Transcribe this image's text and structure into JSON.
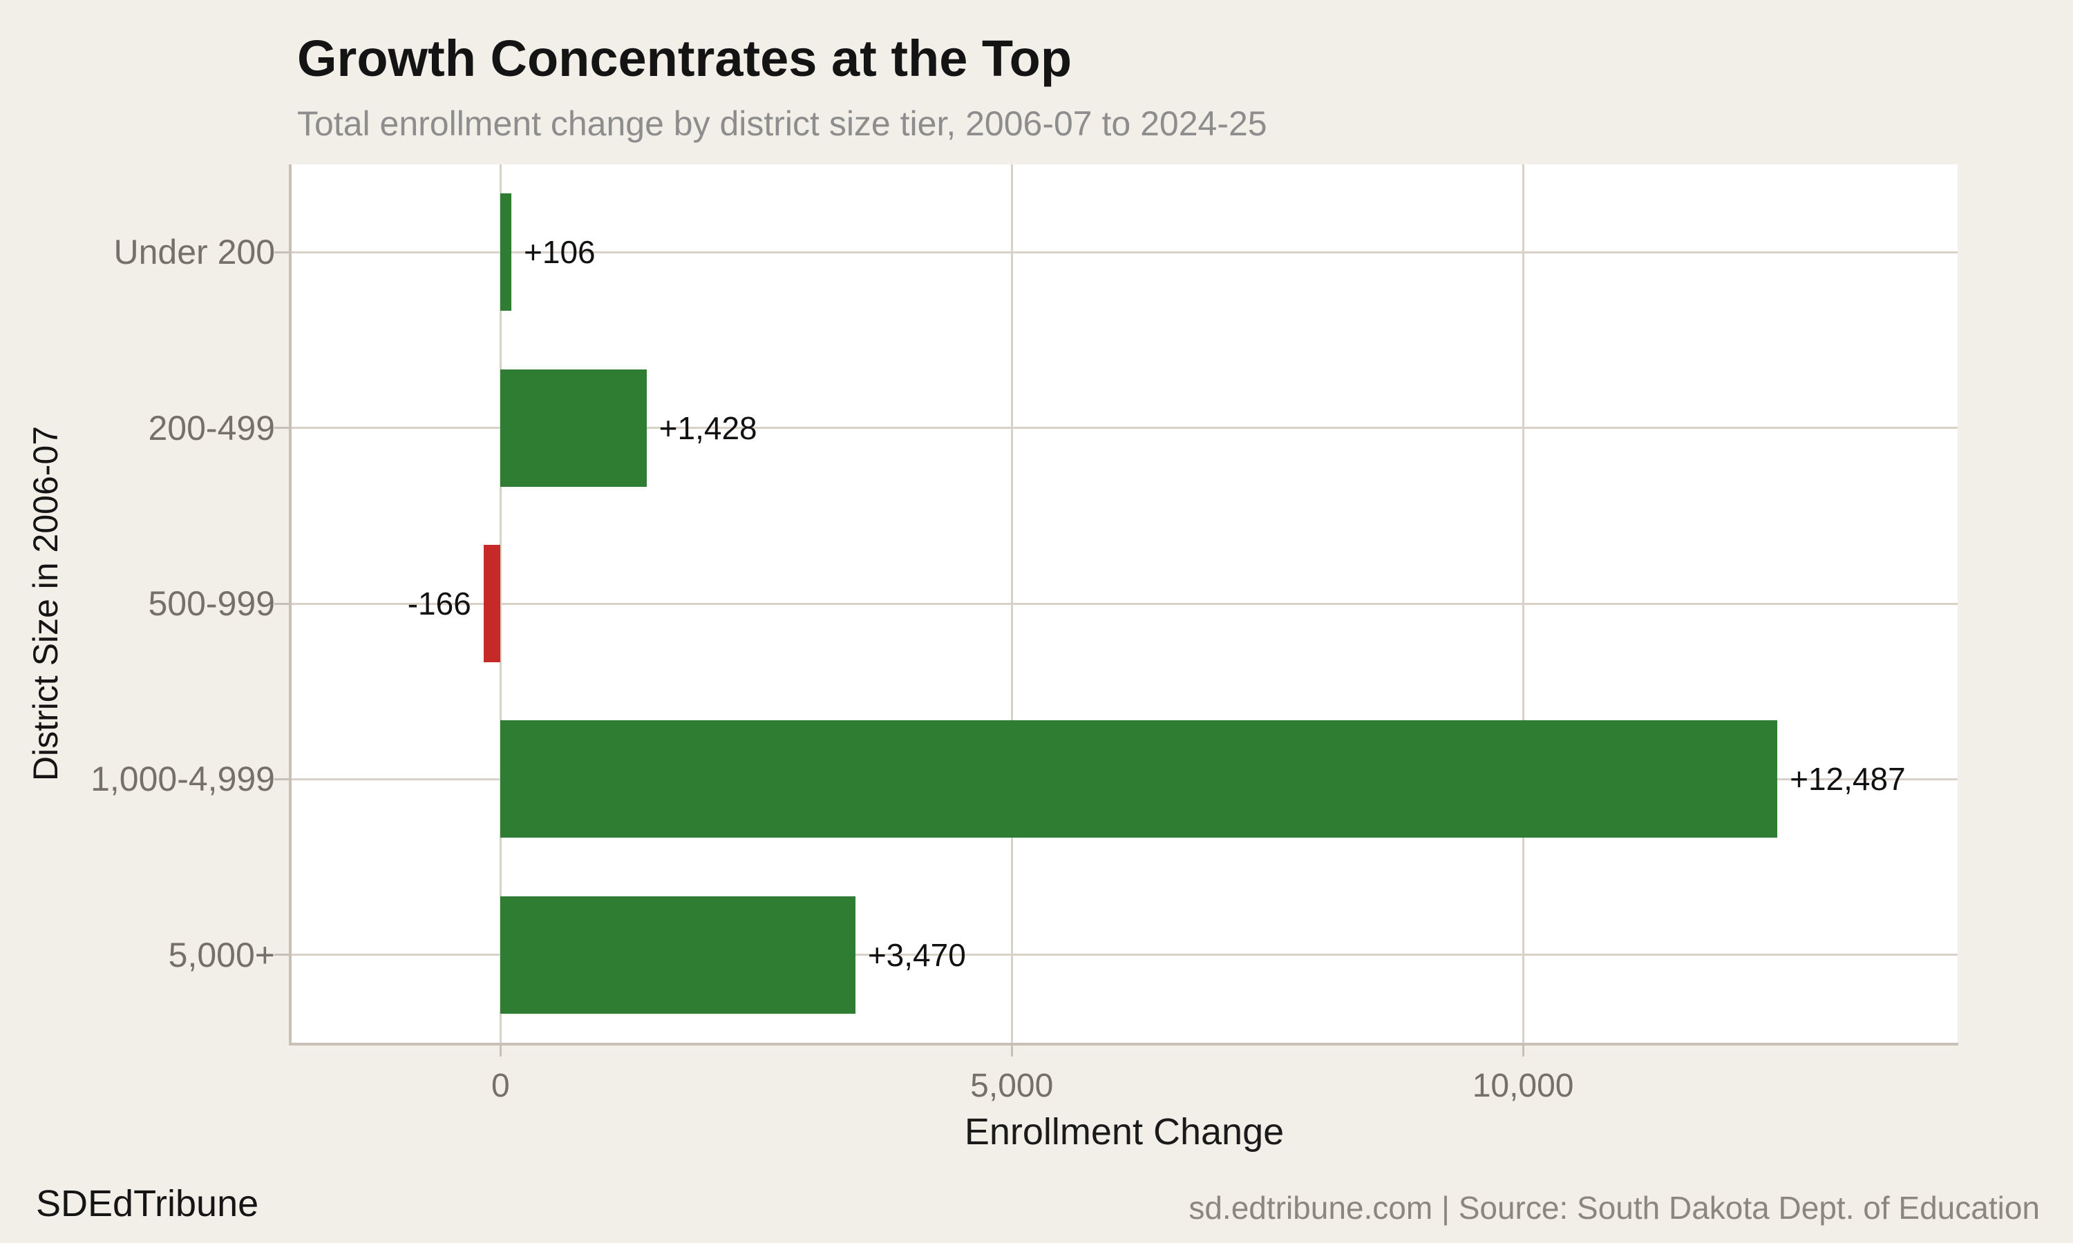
{
  "colors": {
    "background": "#f2efe9",
    "plot_background": "#ffffff",
    "grid": "#d7d1c8",
    "axis": "#c7c0b6",
    "positive_bar": "#2e7d32",
    "negative_bar": "#c52a28",
    "title_text": "#141414",
    "subtitle_text": "#8d8d8d",
    "tick_text": "#757069",
    "value_text": "#111111"
  },
  "footer": {
    "brand": "SDEdTribune",
    "attribution": "sd.edtribune.com | Source: South Dakota Dept. of Education"
  },
  "chart_data": {
    "type": "bar",
    "orientation": "horizontal",
    "title": "Growth Concentrates at the Top",
    "subtitle": "Total enrollment change by district size tier, 2006-07 to 2024-25",
    "xlabel": "Enrollment Change",
    "ylabel": "District Size in 2006-07",
    "categories": [
      "Under 200",
      "200-499",
      "500-999",
      "1,000-4,999",
      "5,000+"
    ],
    "values": [
      106,
      1428,
      -166,
      12487,
      3470
    ],
    "value_labels": [
      "+106",
      "+1,428",
      "-166",
      "+12,487",
      "+3,470"
    ],
    "xlim": [
      -2050,
      14250
    ],
    "xticks": {
      "values": [
        0,
        5000,
        10000
      ],
      "labels": [
        "0",
        "5,000",
        "10,000"
      ]
    },
    "grid": true,
    "legend": "none"
  }
}
